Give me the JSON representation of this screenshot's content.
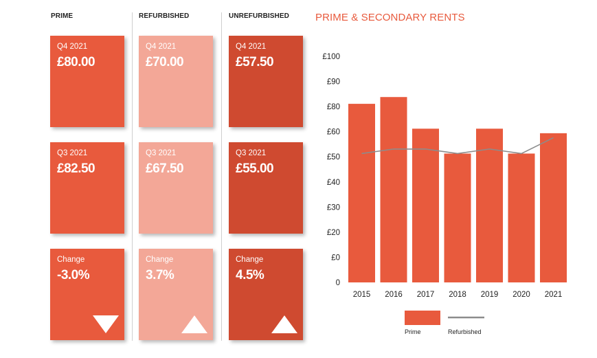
{
  "columns": [
    {
      "header": "PRIME",
      "cards": [
        {
          "label": "Q4 2021",
          "value": "£80.00"
        },
        {
          "label": "Q3 2021",
          "value": "£82.50"
        },
        {
          "label": "Change",
          "value": "-3.0%",
          "arrow": "down"
        }
      ]
    },
    {
      "header": "REFURBISHED",
      "cards": [
        {
          "label": "Q4 2021",
          "value": "£70.00"
        },
        {
          "label": "Q3 2021",
          "value": "£67.50"
        },
        {
          "label": "Change",
          "value": "3.7%",
          "arrow": "up"
        }
      ]
    },
    {
      "header": "UNREFURBISHED",
      "cards": [
        {
          "label": "Q4 2021",
          "value": "£57.50"
        },
        {
          "label": "Q3 2021",
          "value": "£55.00"
        },
        {
          "label": "Change",
          "value": "4.5%",
          "arrow": "up"
        }
      ]
    }
  ],
  "colors": {
    "prime": "#e85a3d",
    "refurbished_card": "#f3a797",
    "unrefurbished_card": "#cf4a30",
    "refurbished_line": "#8c8c8c"
  },
  "chart_data": {
    "type": "bar",
    "title": "PRIME & SECONDARY RENTS",
    "categories": [
      "2015",
      "2016",
      "2017",
      "2018",
      "2019",
      "2020",
      "2021"
    ],
    "series": [
      {
        "name": "Prime",
        "type": "bar",
        "values": [
          79,
          82,
          68,
          57,
          68,
          57,
          66
        ]
      },
      {
        "name": "Refurbished",
        "type": "line",
        "values": [
          57,
          59,
          59,
          57,
          59,
          57,
          64
        ]
      }
    ],
    "yticks": [
      "0",
      "£0",
      "£20",
      "£30",
      "£40",
      "£50",
      "£60",
      "£80",
      "£90",
      "£100"
    ],
    "ylim": [
      0,
      100
    ],
    "xlabel": "",
    "ylabel": "",
    "legend": "bottom",
    "grid": false
  }
}
